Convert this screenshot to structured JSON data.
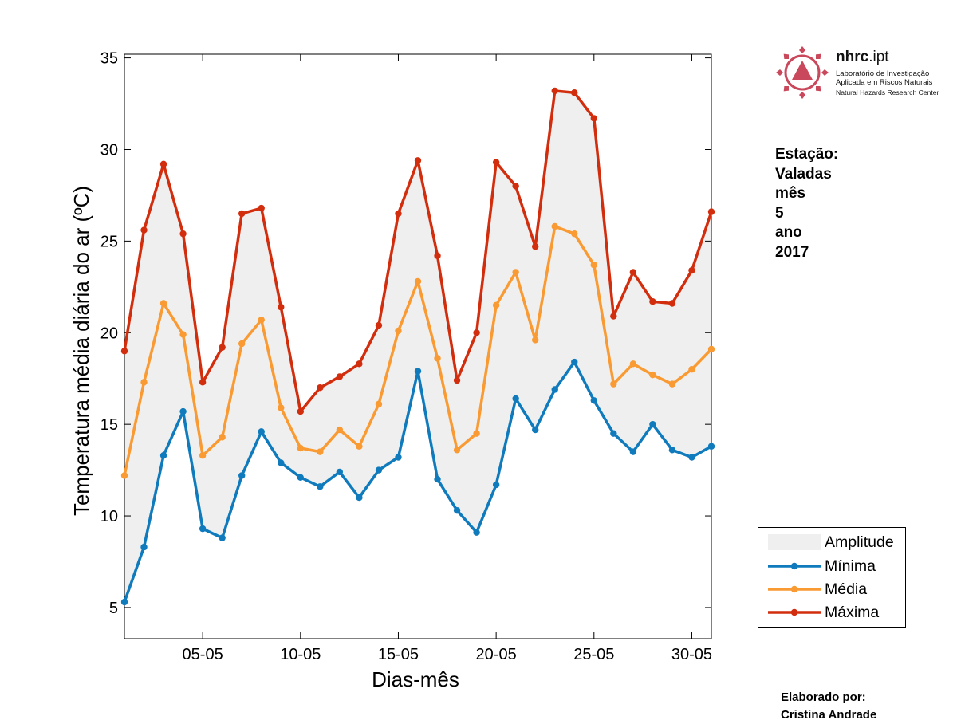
{
  "chart_data": {
    "type": "line",
    "ylabel": "Temperatura média diária do ar (ºC)",
    "xlabel": "Dias-mês",
    "x": [
      1,
      2,
      3,
      4,
      5,
      6,
      7,
      8,
      9,
      10,
      11,
      12,
      13,
      14,
      15,
      16,
      17,
      18,
      19,
      20,
      21,
      22,
      23,
      24,
      25,
      26,
      27,
      28,
      29,
      30,
      31
    ],
    "xticks": [
      5,
      10,
      15,
      20,
      25,
      30
    ],
    "xtick_labels": [
      "05-05",
      "10-05",
      "15-05",
      "20-05",
      "25-05",
      "30-05"
    ],
    "xlim": [
      1,
      31
    ],
    "ylim": [
      3.3,
      35.2
    ],
    "yticks": [
      5,
      10,
      15,
      20,
      25,
      30,
      35
    ],
    "ytick_labels": [
      "5",
      "10",
      "15",
      "20",
      "25",
      "30",
      "35"
    ],
    "series": [
      {
        "name": "Mínima",
        "color": "#0f7bbd",
        "values": [
          5.3,
          8.3,
          13.3,
          15.7,
          9.3,
          8.8,
          12.2,
          14.6,
          12.9,
          12.1,
          11.6,
          12.4,
          11.0,
          12.5,
          13.2,
          17.9,
          12.0,
          10.3,
          9.1,
          11.7,
          16.4,
          14.7,
          16.9,
          18.4,
          16.3,
          14.5,
          13.5,
          15.0,
          13.6,
          13.2,
          13.8
        ]
      },
      {
        "name": "Média",
        "color": "#f99a32",
        "values": [
          12.2,
          17.3,
          21.6,
          19.9,
          13.3,
          14.3,
          19.4,
          20.7,
          15.9,
          13.7,
          13.5,
          14.7,
          13.8,
          16.1,
          20.1,
          22.8,
          18.6,
          13.6,
          14.5,
          21.5,
          23.3,
          19.6,
          25.8,
          25.4,
          23.7,
          17.2,
          18.3,
          17.7,
          17.2,
          18.0,
          19.1
        ]
      },
      {
        "name": "Máxima",
        "color": "#d22e0e",
        "values": [
          19.0,
          25.6,
          29.2,
          25.4,
          17.3,
          19.2,
          26.5,
          26.8,
          21.4,
          15.7,
          17.0,
          17.6,
          18.3,
          20.4,
          26.5,
          29.4,
          24.2,
          17.4,
          20.0,
          29.3,
          28.0,
          24.7,
          33.2,
          33.1,
          31.7,
          20.9,
          23.3,
          21.7,
          21.6,
          23.4,
          26.6
        ]
      }
    ],
    "band": {
      "name": "Amplitude",
      "color": "#efefef",
      "from_series": "Mínima",
      "to_series": "Máxima"
    },
    "legend": {
      "placement": "right",
      "entries": [
        "Amplitude",
        "Mínima",
        "Média",
        "Máxima"
      ]
    },
    "grid": false
  },
  "info": {
    "station_label": "Estação:",
    "station": "Valadas",
    "month_label": "mês",
    "month": "5",
    "year_label": "ano",
    "year": "2017"
  },
  "credit": {
    "line1": "Elaborado por:",
    "line2": "Cristina Andrade"
  },
  "logo": {
    "name_bold": "nhrc",
    "name_rest": ".ipt",
    "line1": "Laboratório de Investigação",
    "line2": "Aplicada em Riscos Naturais",
    "line3": "Natural Hazards Research Center",
    "color": "#c9485b",
    "icon": "nhrc-sunburst-triangle-icon"
  }
}
